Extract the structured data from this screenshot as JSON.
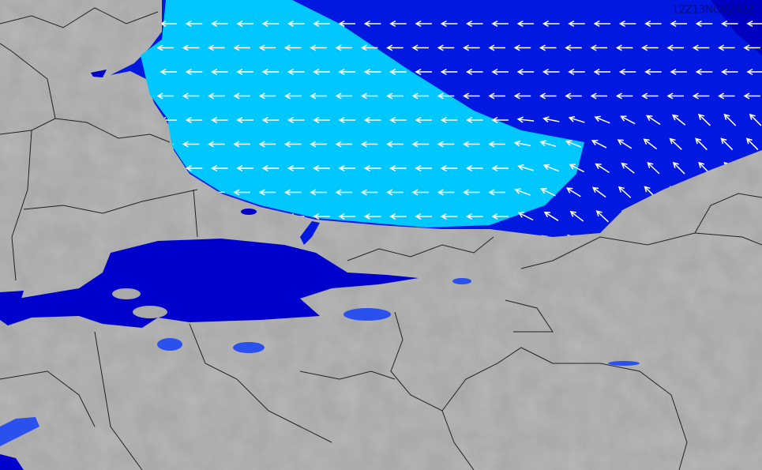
{
  "timestamp": "12Z13NOV2022"
}
